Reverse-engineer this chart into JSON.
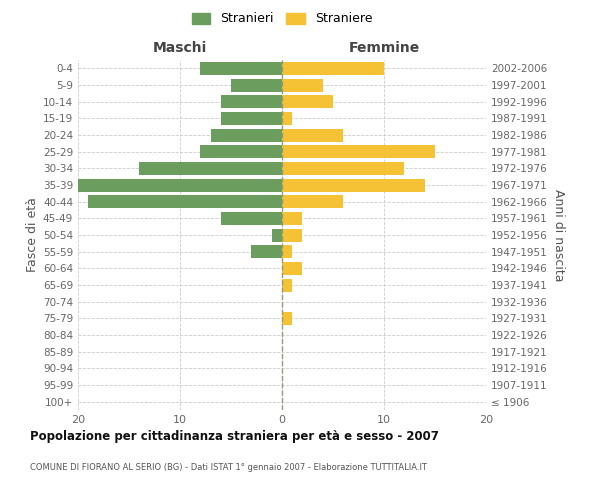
{
  "age_groups": [
    "100+",
    "95-99",
    "90-94",
    "85-89",
    "80-84",
    "75-79",
    "70-74",
    "65-69",
    "60-64",
    "55-59",
    "50-54",
    "45-49",
    "40-44",
    "35-39",
    "30-34",
    "25-29",
    "20-24",
    "15-19",
    "10-14",
    "5-9",
    "0-4"
  ],
  "birth_years": [
    "≤ 1906",
    "1907-1911",
    "1912-1916",
    "1917-1921",
    "1922-1926",
    "1927-1931",
    "1932-1936",
    "1937-1941",
    "1942-1946",
    "1947-1951",
    "1952-1956",
    "1957-1961",
    "1962-1966",
    "1967-1971",
    "1972-1976",
    "1977-1981",
    "1982-1986",
    "1987-1991",
    "1992-1996",
    "1997-2001",
    "2002-2006"
  ],
  "maschi": [
    0,
    0,
    0,
    0,
    0,
    0,
    0,
    0,
    0,
    3,
    1,
    6,
    19,
    20,
    14,
    8,
    7,
    6,
    6,
    5,
    8
  ],
  "femmine": [
    0,
    0,
    0,
    0,
    0,
    1,
    0,
    1,
    2,
    1,
    2,
    2,
    6,
    14,
    12,
    15,
    6,
    1,
    5,
    4,
    10
  ],
  "color_maschi": "#6b9e5e",
  "color_femmine": "#f5c135",
  "title": "Popolazione per cittadinanza straniera per età e sesso - 2007",
  "subtitle": "COMUNE DI FIORANO AL SERIO (BG) - Dati ISTAT 1° gennaio 2007 - Elaborazione TUTTITALIA.IT",
  "ylabel_left": "Fasce di età",
  "ylabel_right": "Anni di nascita",
  "xlabel_left": "Maschi",
  "xlabel_right": "Femmine",
  "legend_maschi": "Stranieri",
  "legend_femmine": "Straniere",
  "xlim": 20,
  "background_color": "#ffffff",
  "grid_color": "#cccccc"
}
